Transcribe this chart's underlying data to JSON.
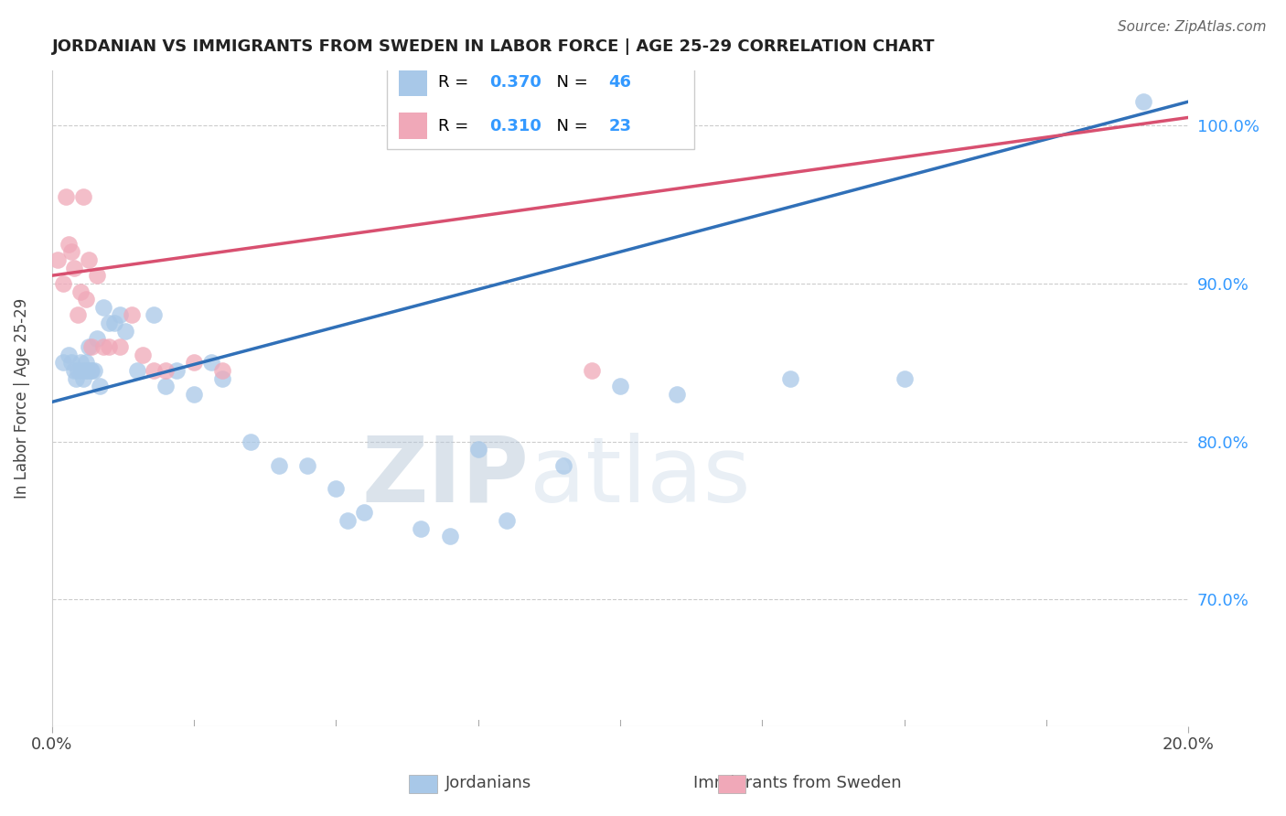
{
  "title": "JORDANIAN VS IMMIGRANTS FROM SWEDEN IN LABOR FORCE | AGE 25-29 CORRELATION CHART",
  "source": "Source: ZipAtlas.com",
  "ylabel": "In Labor Force | Age 25-29",
  "xlim": [
    0.0,
    20.0
  ],
  "ylim": [
    62.0,
    103.5
  ],
  "xticks": [
    0.0,
    20.0
  ],
  "xtick_labels": [
    "0.0%",
    "20.0%"
  ],
  "ytick_labels": [
    "100.0%",
    "90.0%",
    "80.0%",
    "70.0%"
  ],
  "yticks": [
    100.0,
    90.0,
    80.0,
    70.0
  ],
  "r_jordanian": 0.37,
  "n_jordanian": 46,
  "r_sweden": 0.31,
  "n_sweden": 23,
  "blue_color": "#A8C8E8",
  "pink_color": "#F0A8B8",
  "blue_line_color": "#3070B8",
  "pink_line_color": "#D85070",
  "watermark_zip": "ZIP",
  "watermark_atlas": "atlas",
  "watermark_color": "#C8DCF0",
  "jordanian_x": [
    0.2,
    0.3,
    0.35,
    0.4,
    0.42,
    0.45,
    0.5,
    0.52,
    0.55,
    0.58,
    0.6,
    0.62,
    0.65,
    0.68,
    0.7,
    0.75,
    0.8,
    0.85,
    0.9,
    1.0,
    1.1,
    1.2,
    1.3,
    1.5,
    1.8,
    2.0,
    2.2,
    2.5,
    2.8,
    3.0,
    3.5,
    4.0,
    4.5,
    5.0,
    5.2,
    5.5,
    6.5,
    7.0,
    7.5,
    8.0,
    9.0,
    10.0,
    11.0,
    13.0,
    15.0,
    19.2
  ],
  "jordanian_y": [
    85.0,
    85.5,
    85.0,
    84.5,
    84.0,
    84.5,
    85.0,
    84.5,
    84.0,
    84.5,
    85.0,
    84.5,
    86.0,
    84.5,
    84.5,
    84.5,
    86.5,
    83.5,
    88.5,
    87.5,
    87.5,
    88.0,
    87.0,
    84.5,
    88.0,
    83.5,
    84.5,
    83.0,
    85.0,
    84.0,
    80.0,
    78.5,
    78.5,
    77.0,
    75.0,
    75.5,
    74.5,
    74.0,
    79.5,
    75.0,
    78.5,
    83.5,
    83.0,
    84.0,
    84.0,
    101.5
  ],
  "sweden_x": [
    0.1,
    0.2,
    0.25,
    0.3,
    0.35,
    0.4,
    0.45,
    0.5,
    0.55,
    0.6,
    0.65,
    0.7,
    0.8,
    0.9,
    1.0,
    1.2,
    1.4,
    1.6,
    1.8,
    2.0,
    2.5,
    3.0,
    9.5
  ],
  "sweden_y": [
    91.5,
    90.0,
    95.5,
    92.5,
    92.0,
    91.0,
    88.0,
    89.5,
    95.5,
    89.0,
    91.5,
    86.0,
    90.5,
    86.0,
    86.0,
    86.0,
    88.0,
    85.5,
    84.5,
    84.5,
    85.0,
    84.5,
    84.5
  ],
  "blue_line_x0": 0.0,
  "blue_line_y0": 82.5,
  "blue_line_x1": 20.0,
  "blue_line_y1": 101.5,
  "pink_line_x0": 0.0,
  "pink_line_y0": 90.5,
  "pink_line_x1": 20.0,
  "pink_line_y1": 100.5
}
